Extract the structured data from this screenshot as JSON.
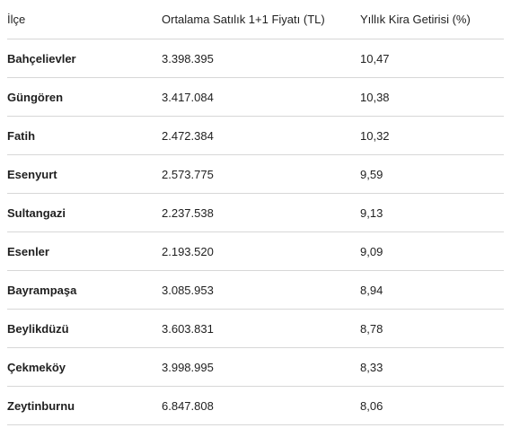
{
  "table": {
    "headers": [
      "İlçe",
      "Ortalama Satılık 1+1 Fiyatı (TL)",
      "Yıllık Kira Getirisi (%)"
    ],
    "rows": [
      [
        "Bahçelievler",
        "3.398.395",
        "10,47"
      ],
      [
        "Güngören",
        "3.417.084",
        "10,38"
      ],
      [
        "Fatih",
        "2.472.384",
        "10,32"
      ],
      [
        "Esenyurt",
        "2.573.775",
        "9,59"
      ],
      [
        "Sultangazi",
        "2.237.538",
        "9,13"
      ],
      [
        "Esenler",
        "2.193.520",
        "9,09"
      ],
      [
        "Bayrampaşa",
        "3.085.953",
        "8,94"
      ],
      [
        "Beylikdüzü",
        "3.603.831",
        "8,78"
      ],
      [
        "Çekmeköy",
        "3.998.995",
        "8,33"
      ],
      [
        "Zeytinburnu",
        "6.847.808",
        "8,06"
      ]
    ]
  }
}
